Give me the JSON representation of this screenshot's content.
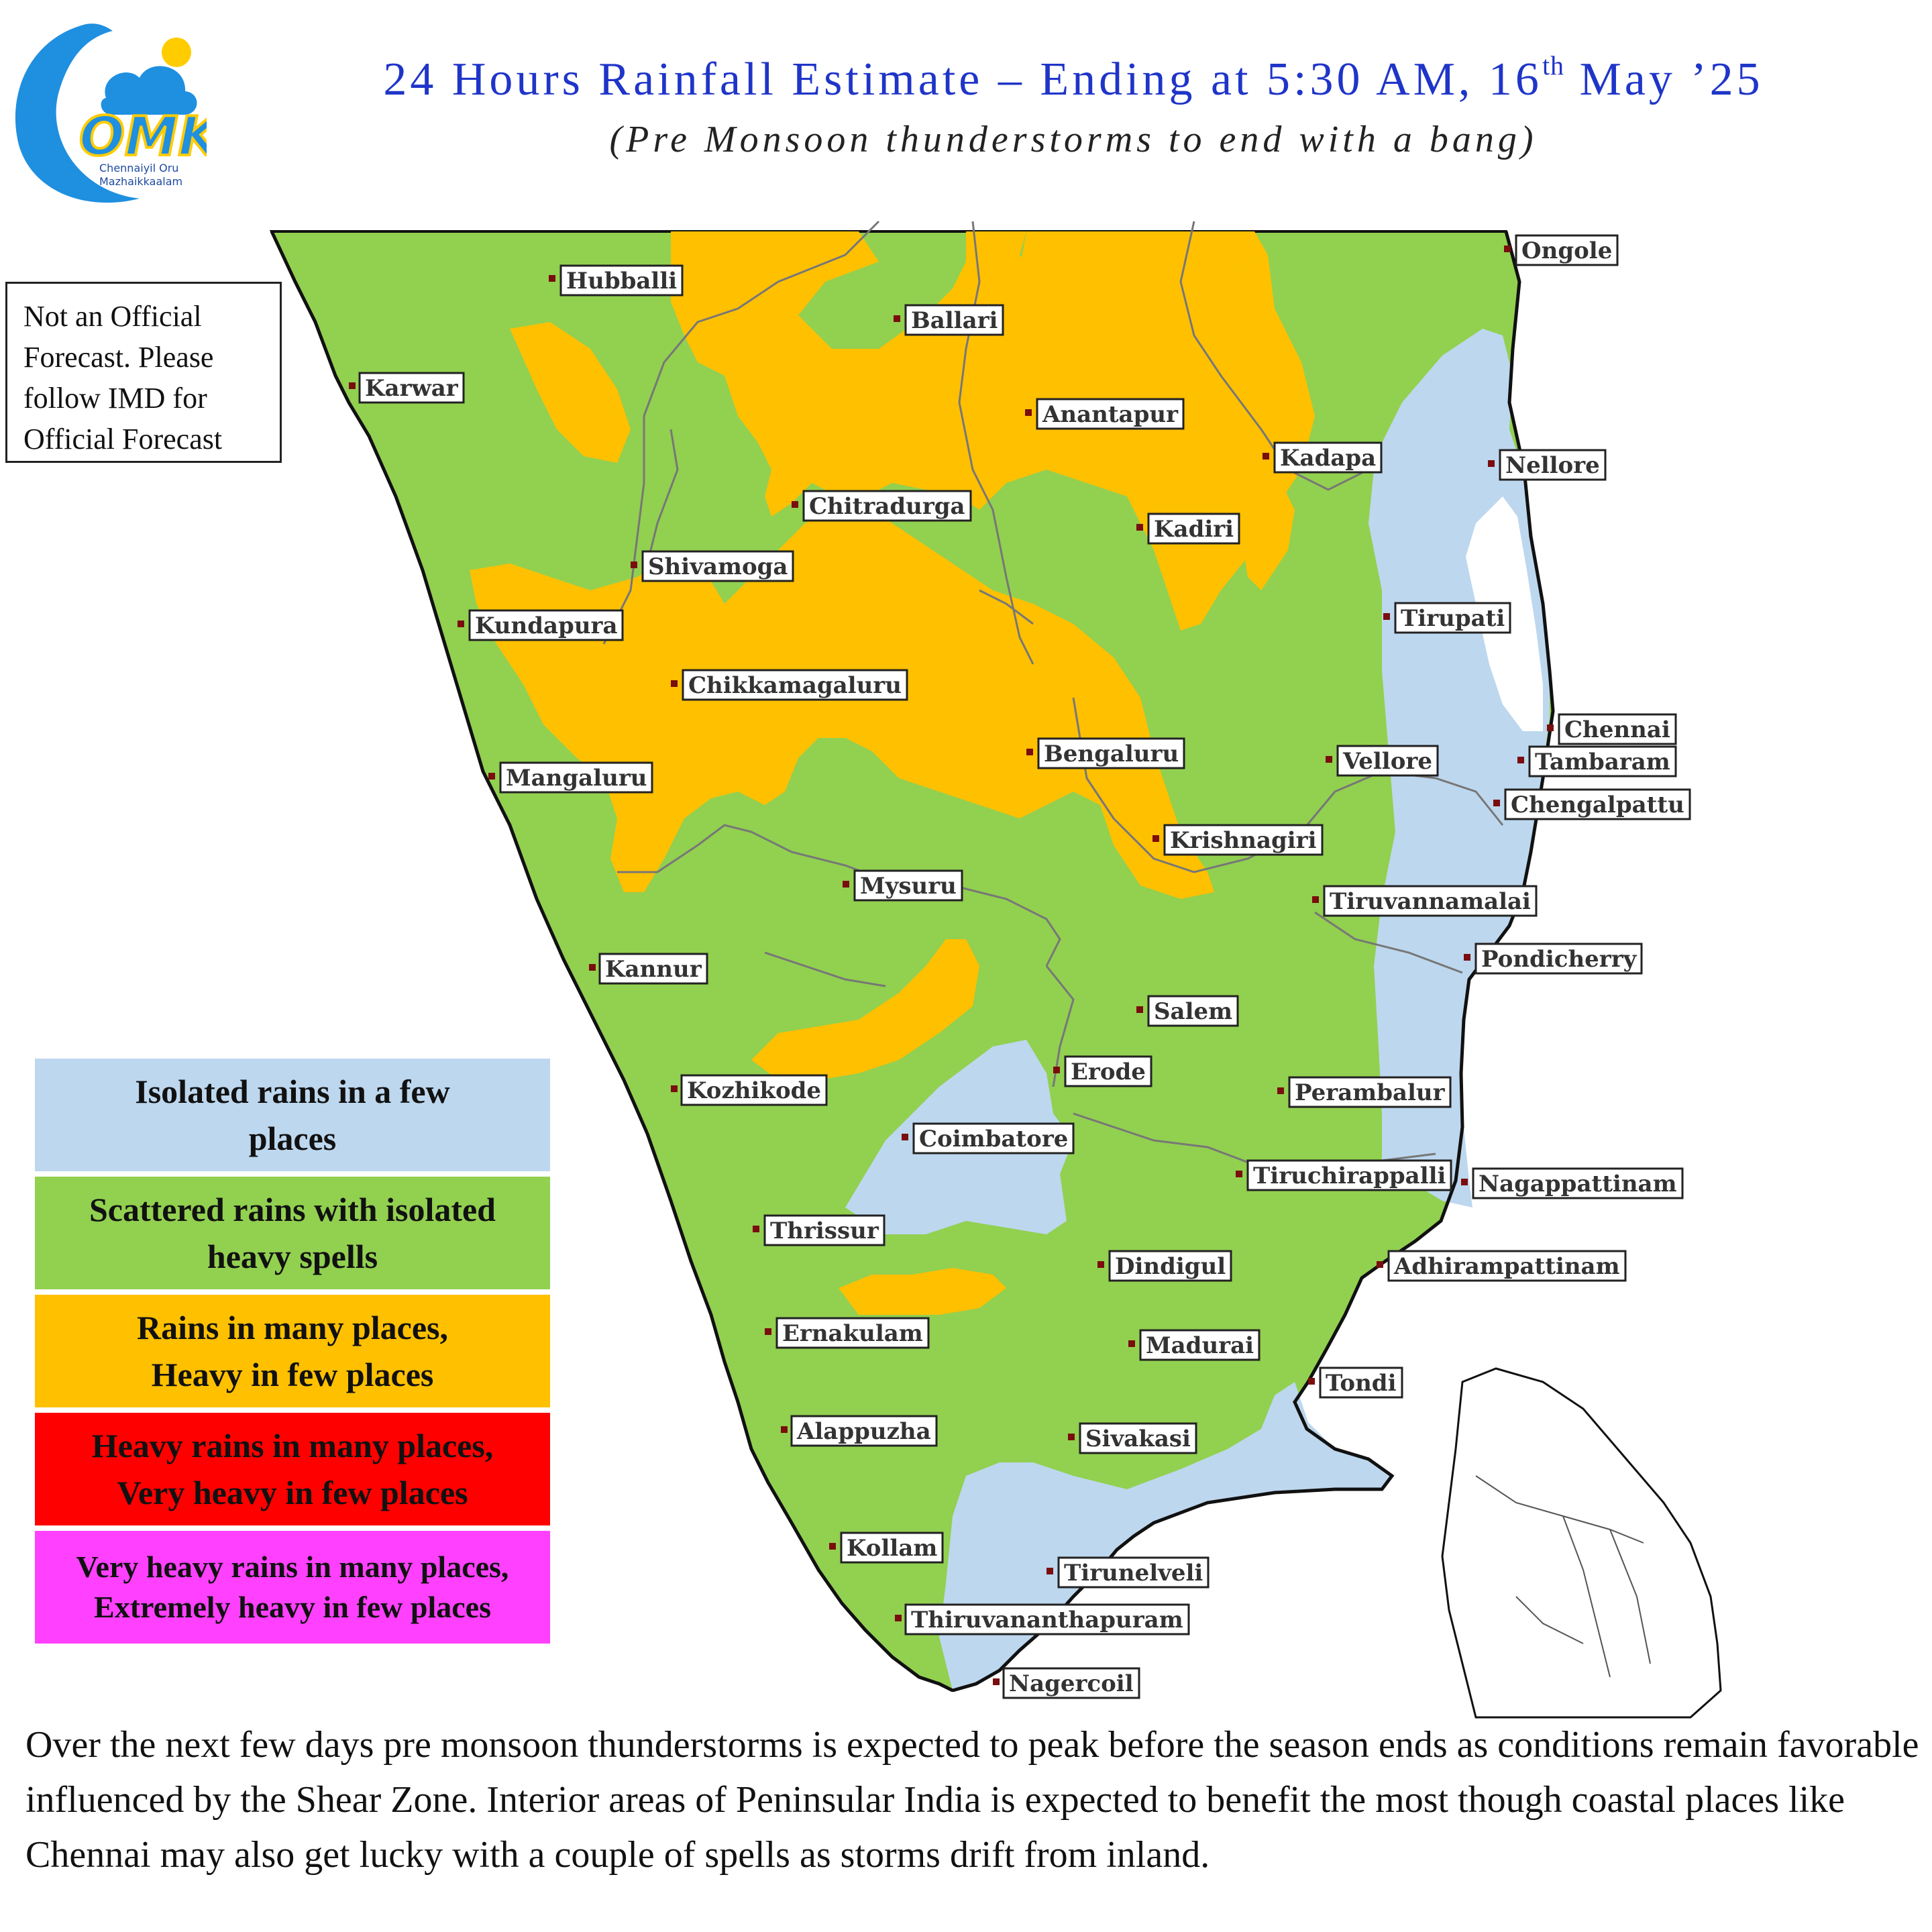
{
  "header": {
    "title_main": "24 Hours Rainfall Estimate – Ending at 5:30 AM, 16",
    "title_sup": "th",
    "title_end": " May ’25",
    "subtitle": "(Pre Monsoon thunderstorms to end with a bang)"
  },
  "logo": {
    "text": "OMK",
    "subtext_1": "Chennaiyil Oru",
    "subtext_2": "Mazhaikkaalam"
  },
  "disclaimer": "Not an Official\nForecast. Please\nfollow IMD for\nOfficial Forecast",
  "legend": [
    {
      "label": "Isolated rains in a few places",
      "color": "#bdd7ee"
    },
    {
      "label": "Scattered rains with isolated heavy spells",
      "color": "#92d050"
    },
    {
      "label": "Rains in many places, Heavy in few places",
      "color": "#ffc000"
    },
    {
      "label": "Heavy rains in many places, Very heavy in few places",
      "color": "#ff0000"
    },
    {
      "label": "Very heavy rains in many places, Extremely heavy in few places",
      "color": "#ff40ff"
    }
  ],
  "cities": {
    "hubballi": "Hubballi",
    "ballari": "Ballari",
    "ongole": "Ongole",
    "karwar": "Karwar",
    "anantapur": "Anantapur",
    "kadapa": "Kadapa",
    "nellore": "Nellore",
    "chitradurga": "Chitradurga",
    "kadiri": "Kadiri",
    "shivamoga": "Shivamoga",
    "kundapura": "Kundapura",
    "tirupati": "Tirupati",
    "chikkamagaluru": "Chikkamagaluru",
    "chennai": "Chennai",
    "bengaluru": "Bengaluru",
    "vellore": "Vellore",
    "tambaram": "Tambaram",
    "mangaluru": "Mangaluru",
    "chengalpattu": "Chengalpattu",
    "krishnagiri": "Krishnagiri",
    "mysuru": "Mysuru",
    "tiruvannamalai": "Tiruvannamalai",
    "kannur": "Kannur",
    "pondicherry": "Pondicherry",
    "salem": "Salem",
    "erode": "Erode",
    "kozhikode": "Kozhikode",
    "perambalur": "Perambalur",
    "coimbatore": "Coimbatore",
    "tiruchirappalli": "Tiruchirappalli",
    "nagappattinam": "Nagappattinam",
    "thrissur": "Thrissur",
    "dindigul": "Dindigul",
    "adhirampattinam": "Adhirampattinam",
    "ernakulam": "Ernakulam",
    "madurai": "Madurai",
    "tondi": "Tondi",
    "alappuzha": "Alappuzha",
    "sivakasi": "Sivakasi",
    "kollam": "Kollam",
    "tirunelveli": "Tirunelveli",
    "thiruvananthapuram": "Thiruvananthapuram",
    "nagercoil": "Nagercoil"
  },
  "footer": "Over the next few days pre monsoon thunderstorms is expected to peak before the season ends as conditions remain favorable influenced by the Shear Zone. Interior areas of Peninsular India is expected to benefit the most though coastal places like Chennai may also get lucky with a couple of spells as storms drift from inland."
}
